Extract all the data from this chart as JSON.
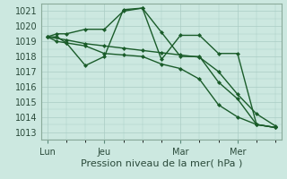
{
  "xlabel": "Pression niveau de la mer( hPa )",
  "bg_color": "#cce8e0",
  "grid_color": "#aaccc4",
  "line_color": "#1a5c2a",
  "ylim": [
    1012.5,
    1021.5
  ],
  "yticks": [
    1013,
    1014,
    1015,
    1016,
    1017,
    1018,
    1019,
    1020,
    1021
  ],
  "xtick_labels": [
    "Lun",
    "Jeu",
    "Mar",
    "Mer"
  ],
  "xtick_positions": [
    0,
    3,
    7,
    10
  ],
  "xlim": [
    -0.3,
    12.3
  ],
  "series1_x": [
    0,
    0.5,
    1,
    2,
    3,
    4,
    5,
    6,
    7,
    8,
    9,
    10,
    11,
    12
  ],
  "series1_y": [
    1019.3,
    1019.5,
    1019.5,
    1019.8,
    1019.8,
    1021.0,
    1021.2,
    1019.6,
    1018.0,
    1018.0,
    1016.3,
    1015.2,
    1013.5,
    1013.3
  ],
  "series2_x": [
    0,
    0.5,
    1,
    2,
    3,
    4,
    5,
    6,
    7,
    8,
    9,
    10,
    11,
    12
  ],
  "series2_y": [
    1019.3,
    1019.3,
    1018.9,
    1017.4,
    1018.0,
    1021.1,
    1021.2,
    1017.8,
    1019.4,
    1019.4,
    1018.2,
    1018.2,
    1013.5,
    1013.3
  ],
  "series3_x": [
    0,
    0.5,
    1,
    2,
    3,
    4,
    5,
    6,
    7,
    8,
    9,
    10,
    11,
    12
  ],
  "series3_y": [
    1019.3,
    1019.0,
    1018.9,
    1018.7,
    1018.2,
    1018.1,
    1018.0,
    1017.5,
    1017.2,
    1016.5,
    1014.8,
    1014.0,
    1013.5,
    1013.3
  ],
  "series4_x": [
    0,
    1,
    2,
    3,
    4,
    5,
    6,
    7,
    8,
    9,
    10,
    11,
    12
  ],
  "series4_y": [
    1019.3,
    1019.1,
    1018.85,
    1018.7,
    1018.55,
    1018.4,
    1018.25,
    1018.1,
    1017.95,
    1017.0,
    1015.5,
    1014.2,
    1013.4
  ],
  "marker": "D",
  "markersize": 2.5,
  "linewidth": 1.0
}
